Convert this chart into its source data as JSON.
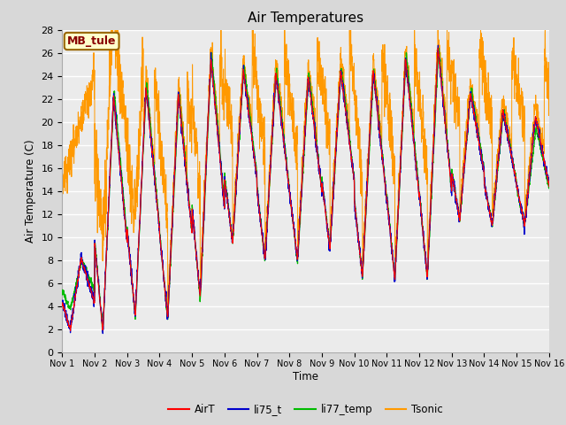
{
  "title": "Air Temperatures",
  "ylabel": "Air Temperature (C)",
  "xlabel": "Time",
  "annotation": "MB_tule",
  "ylim": [
    0,
    28
  ],
  "yticks": [
    0,
    2,
    4,
    6,
    8,
    10,
    12,
    14,
    16,
    18,
    20,
    22,
    24,
    26,
    28
  ],
  "xtick_labels": [
    "Nov 1",
    "Nov 2",
    "Nov 3",
    "Nov 4",
    "Nov 5",
    "Nov 6",
    "Nov 7",
    "Nov 8",
    "Nov 9",
    "Nov 10",
    "Nov 11",
    "Nov 12",
    "Nov 13",
    "Nov 14",
    "Nov 15",
    "Nov 16"
  ],
  "colors": {
    "AirT": "#ff0000",
    "li75_t": "#0000cc",
    "li77_temp": "#00bb00",
    "Tsonic": "#ff9900"
  },
  "background_color": "#d8d8d8",
  "plot_bg_color": "#ebebeb",
  "annotation_bg": "#ffffcc",
  "annotation_border": "#996600",
  "annotation_text_color": "#880000",
  "n_days": 15,
  "n_points": 3000,
  "day_mins_air": [
    2.0,
    1.8,
    3.2,
    3.0,
    4.8,
    9.5,
    8.0,
    8.0,
    9.0,
    6.5,
    6.3,
    6.5,
    11.5,
    11.0,
    11.0
  ],
  "day_maxs_air": [
    8.2,
    22.3,
    23.0,
    22.5,
    25.5,
    24.5,
    24.2,
    24.0,
    24.5,
    24.5,
    25.5,
    26.5,
    22.5,
    21.0,
    20.5
  ],
  "day_mins_green": [
    3.8,
    1.8,
    3.0,
    2.9,
    4.5,
    9.5,
    8.0,
    7.8,
    9.0,
    6.5,
    6.3,
    6.3,
    11.5,
    11.0,
    11.0
  ],
  "day_maxs_green": [
    8.0,
    22.8,
    23.5,
    22.5,
    26.0,
    25.0,
    24.5,
    24.2,
    24.8,
    24.5,
    26.0,
    26.5,
    22.8,
    21.0,
    19.5
  ],
  "tsonic_base_add": 3.5,
  "tsonic_noise_day": 0.5,
  "tsonic_noise_night": 1.2,
  "peak_phase": 0.58,
  "min_phase": 0.25
}
